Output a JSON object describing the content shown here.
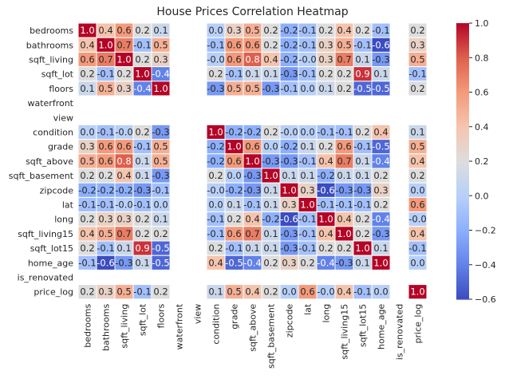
{
  "chart_data": {
    "type": "heatmap",
    "title": "House Prices Correlation Heatmap",
    "variables": [
      "bedrooms",
      "bathrooms",
      "sqft_living",
      "sqft_lot",
      "floors",
      "waterfront",
      "view",
      "condition",
      "grade",
      "sqft_above",
      "sqft_basement",
      "zipcode",
      "lat",
      "long",
      "sqft_living15",
      "sqft_lot15",
      "home_age",
      "is_renovated",
      "price_log"
    ],
    "matrix": [
      [
        "1.0",
        "0.4",
        "0.6",
        "0.2",
        "0.1",
        null,
        null,
        "0.0",
        "0.3",
        "0.5",
        "0.2",
        "-0.2",
        "-0.1",
        "0.2",
        "0.4",
        "0.2",
        "-0.1",
        null,
        "0.2"
      ],
      [
        "0.4",
        "1.0",
        "0.7",
        "-0.1",
        "0.5",
        null,
        null,
        "-0.1",
        "0.6",
        "0.6",
        "0.2",
        "-0.2",
        "-0.1",
        "0.3",
        "0.5",
        "-0.1",
        "-0.6",
        null,
        "0.3"
      ],
      [
        "0.6",
        "0.7",
        "1.0",
        "0.2",
        "0.3",
        null,
        null,
        "-0.0",
        "0.6",
        "0.8",
        "0.4",
        "-0.2",
        "-0.0",
        "0.3",
        "0.7",
        "0.1",
        "-0.3",
        null,
        "0.5"
      ],
      [
        "0.2",
        "-0.1",
        "0.2",
        "1.0",
        "-0.4",
        null,
        null,
        "0.2",
        "-0.1",
        "0.1",
        "0.1",
        "-0.3",
        "-0.1",
        "0.2",
        "0.2",
        "0.9",
        "0.1",
        null,
        "-0.1"
      ],
      [
        "0.1",
        "0.5",
        "0.3",
        "-0.4",
        "1.0",
        null,
        null,
        "-0.3",
        "0.5",
        "0.5",
        "-0.3",
        "-0.1",
        "0.0",
        "0.1",
        "0.2",
        "-0.5",
        "-0.5",
        null,
        "0.2"
      ],
      [
        null,
        null,
        null,
        null,
        null,
        null,
        null,
        null,
        null,
        null,
        null,
        null,
        null,
        null,
        null,
        null,
        null,
        null,
        null
      ],
      [
        null,
        null,
        null,
        null,
        null,
        null,
        null,
        null,
        null,
        null,
        null,
        null,
        null,
        null,
        null,
        null,
        null,
        null,
        null
      ],
      [
        "0.0",
        "-0.1",
        "-0.0",
        "0.2",
        "-0.3",
        null,
        null,
        "1.0",
        "-0.2",
        "-0.2",
        "0.2",
        "-0.0",
        "0.0",
        "-0.1",
        "-0.1",
        "0.2",
        "0.4",
        null,
        "0.1"
      ],
      [
        "0.3",
        "0.6",
        "0.6",
        "-0.1",
        "0.5",
        null,
        null,
        "-0.2",
        "1.0",
        "0.6",
        "0.0",
        "-0.2",
        "0.1",
        "0.2",
        "0.6",
        "-0.1",
        "-0.5",
        null,
        "0.5"
      ],
      [
        "0.5",
        "0.6",
        "0.8",
        "0.1",
        "0.5",
        null,
        null,
        "-0.2",
        "0.6",
        "1.0",
        "-0.3",
        "-0.3",
        "-0.1",
        "0.4",
        "0.7",
        "0.1",
        "-0.4",
        null,
        "0.4"
      ],
      [
        "0.2",
        "0.2",
        "0.4",
        "0.1",
        "-0.3",
        null,
        null,
        "0.2",
        "0.0",
        "-0.3",
        "1.0",
        "0.1",
        "0.1",
        "-0.2",
        "0.1",
        "0.1",
        "0.2",
        null,
        "0.2"
      ],
      [
        "-0.2",
        "-0.2",
        "-0.2",
        "-0.3",
        "-0.1",
        null,
        null,
        "-0.0",
        "-0.2",
        "-0.3",
        "0.1",
        "1.0",
        "0.3",
        "-0.6",
        "-0.3",
        "-0.3",
        "0.3",
        null,
        "0.0"
      ],
      [
        "-0.1",
        "-0.1",
        "-0.0",
        "-0.1",
        "0.0",
        null,
        null,
        "0.0",
        "0.1",
        "-0.1",
        "0.1",
        "0.3",
        "1.0",
        "-0.1",
        "-0.1",
        "-0.1",
        "0.2",
        null,
        "0.6"
      ],
      [
        "0.2",
        "0.3",
        "0.3",
        "0.2",
        "0.1",
        null,
        null,
        "-0.1",
        "0.2",
        "0.4",
        "-0.2",
        "-0.6",
        "-0.1",
        "1.0",
        "0.4",
        "0.2",
        "-0.4",
        null,
        "-0.0"
      ],
      [
        "0.4",
        "0.5",
        "0.7",
        "0.2",
        "0.2",
        null,
        null,
        "-0.1",
        "0.6",
        "0.7",
        "0.1",
        "-0.3",
        "-0.1",
        "0.4",
        "1.0",
        "0.2",
        "-0.3",
        null,
        "0.4"
      ],
      [
        "0.2",
        "-0.1",
        "0.1",
        "0.9",
        "-0.5",
        null,
        null,
        "0.2",
        "-0.1",
        "0.1",
        "0.1",
        "-0.3",
        "-0.1",
        "0.2",
        "0.2",
        "1.0",
        "0.1",
        null,
        "-0.1"
      ],
      [
        "-0.1",
        "-0.6",
        "-0.3",
        "0.1",
        "-0.5",
        null,
        null,
        "0.4",
        "-0.5",
        "-0.4",
        "0.2",
        "0.3",
        "0.2",
        "-0.4",
        "-0.3",
        "0.1",
        "1.0",
        null,
        "0.0"
      ],
      [
        null,
        null,
        null,
        null,
        null,
        null,
        null,
        null,
        null,
        null,
        null,
        null,
        null,
        null,
        null,
        null,
        null,
        null,
        null
      ],
      [
        "0.2",
        "0.3",
        "0.5",
        "-0.1",
        "0.2",
        null,
        null,
        "0.1",
        "0.5",
        "0.4",
        "0.2",
        "0.0",
        "0.6",
        "-0.0",
        "0.4",
        "-0.1",
        "0.0",
        null,
        "1.0"
      ]
    ],
    "value_range": [
      -0.6,
      1.0
    ],
    "colorbar_ticks": [
      "1.0",
      "0.8",
      "0.6",
      "0.4",
      "0.2",
      "0.0",
      "−0.2",
      "−0.4",
      "−0.6"
    ],
    "colormap": "coolwarm",
    "colors": {
      "low": "#3b4cc0",
      "mid": "#dddddd",
      "high": "#b40426",
      "cell_border": "#ffffff",
      "text": "#262626"
    },
    "annotations": true,
    "grid": false,
    "legend": "colorbar-right"
  }
}
